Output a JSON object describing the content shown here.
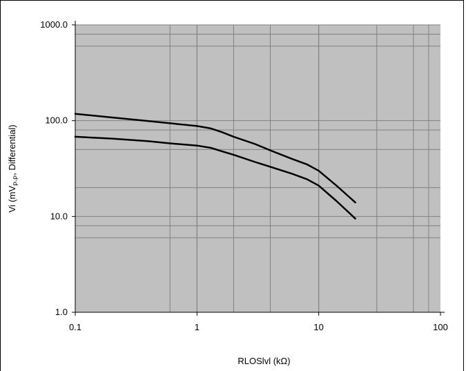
{
  "chart_data": {
    "type": "line",
    "title": "",
    "xlabel": "RLOSlvl (kΩ)",
    "ylabel": {
      "prefix": "Vi (mV",
      "sub": "P-P",
      "suffix": ", Differential)"
    },
    "x_scale": "log",
    "y_scale": "log",
    "xlim": [
      0.1,
      100
    ],
    "ylim": [
      1,
      1000
    ],
    "x_ticks": [
      {
        "value": 0.1,
        "label": "0.1"
      },
      {
        "value": 1,
        "label": "1"
      },
      {
        "value": 10,
        "label": "10"
      },
      {
        "value": 100,
        "label": "100"
      }
    ],
    "y_ticks": [
      {
        "value": 1,
        "label": "1.0"
      },
      {
        "value": 10,
        "label": "10.0"
      },
      {
        "value": 100,
        "label": "100.0"
      },
      {
        "value": 1000,
        "label": "1000.0"
      }
    ],
    "x_gridlines": [
      0.6,
      1,
      2,
      4,
      10,
      30,
      60,
      80
    ],
    "y_gridlines": [
      6,
      8,
      20,
      50,
      80,
      600,
      800
    ],
    "grid": true,
    "background": "#c0c0c0",
    "series": [
      {
        "x": [
          0.1,
          0.2,
          0.4,
          0.6,
          1,
          1.3,
          1.6,
          2,
          3,
          4,
          6,
          8,
          10,
          14,
          20
        ],
        "y": [
          118,
          108,
          99,
          94,
          88,
          83,
          76,
          68,
          57,
          49,
          40,
          35,
          30,
          21,
          14
        ],
        "color": "#000000"
      },
      {
        "x": [
          0.1,
          0.2,
          0.4,
          0.6,
          1,
          1.3,
          1.6,
          2,
          3,
          4,
          6,
          8,
          10,
          14,
          20
        ],
        "y": [
          68,
          65,
          61,
          58,
          55,
          52,
          48,
          44,
          37,
          33,
          28,
          24.5,
          21,
          14.5,
          9.5
        ],
        "color": "#000000"
      }
    ]
  }
}
